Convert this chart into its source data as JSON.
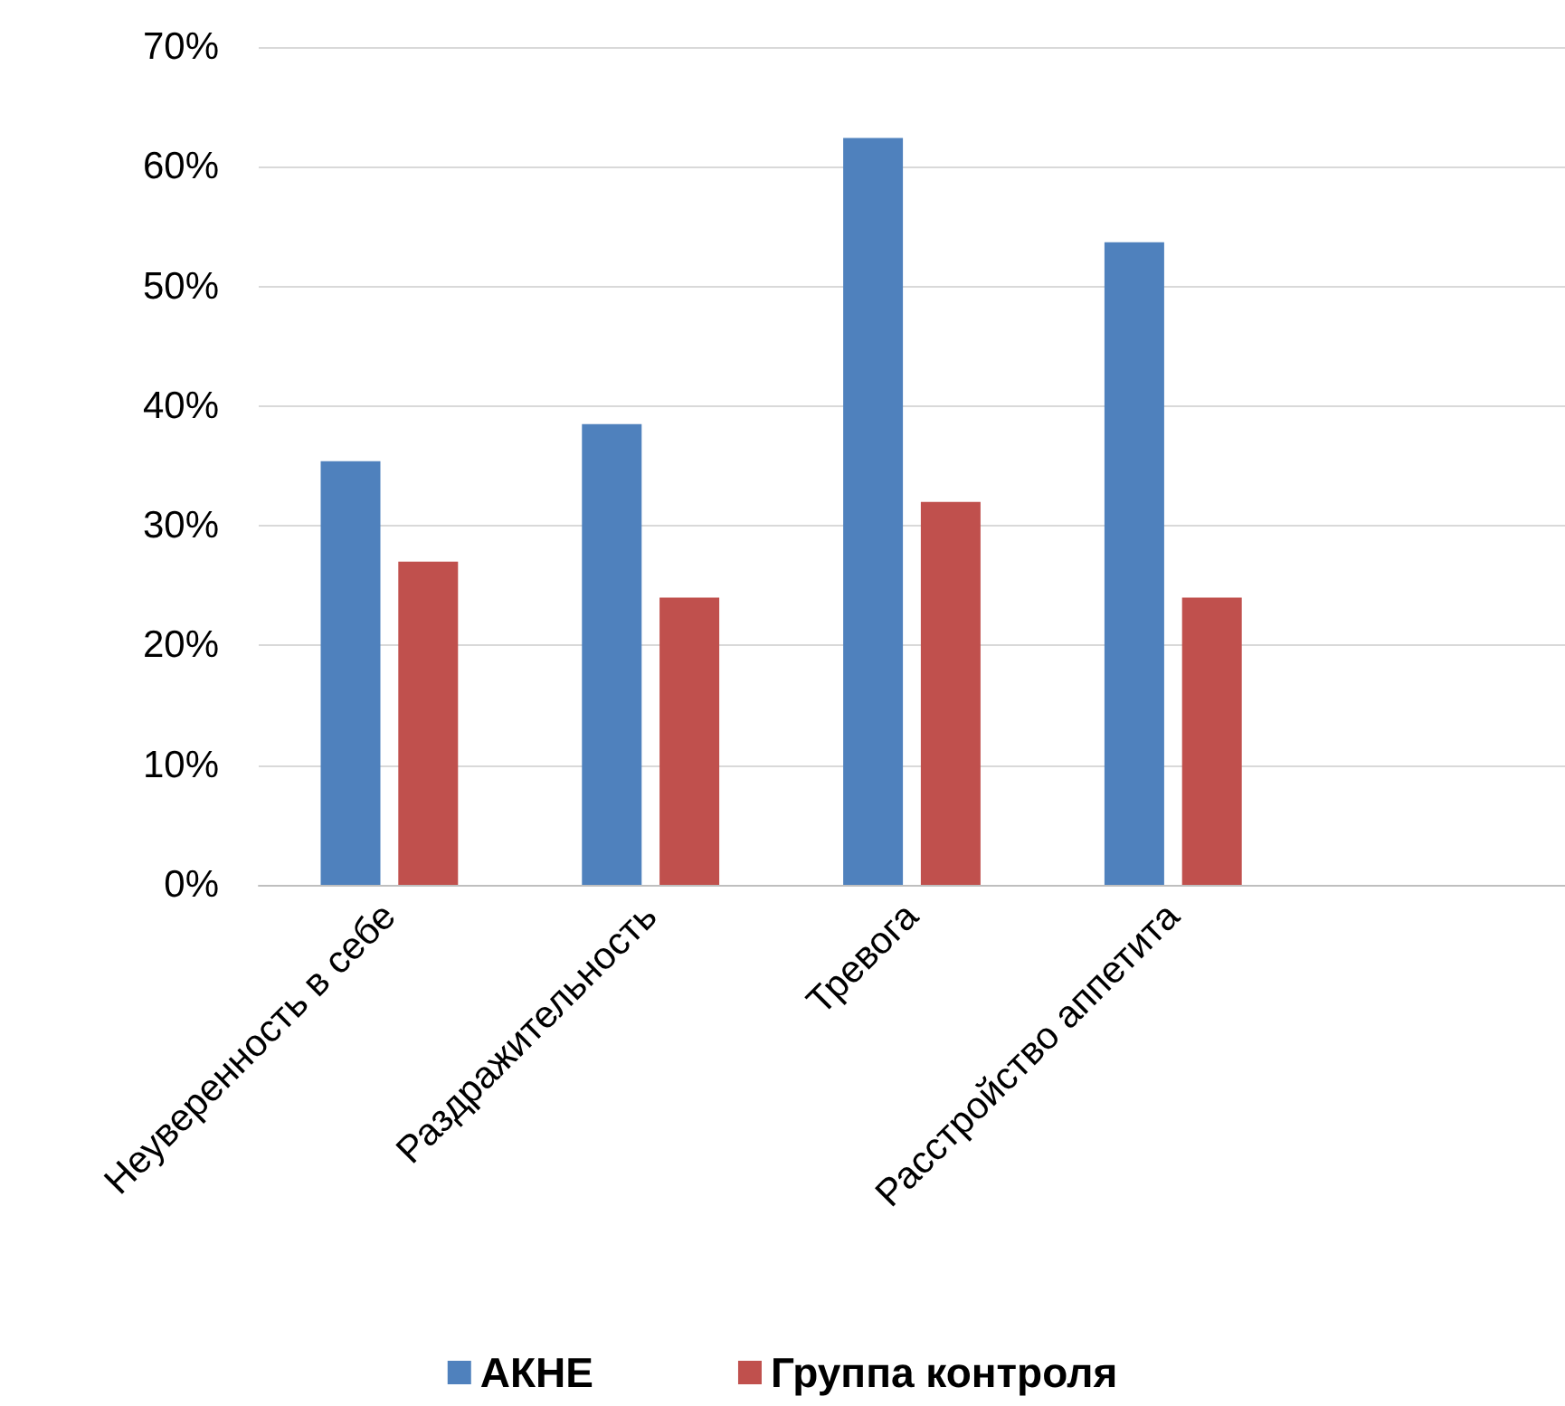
{
  "chart_data": {
    "type": "bar",
    "categories": [
      "Неуверенность в себе",
      "Раздражительность",
      "Тревога",
      "Расстройство аппетита",
      null
    ],
    "series": [
      {
        "name": "АКНЕ",
        "color": "#4f81bd",
        "values": [
          35.4,
          38.5,
          62.4,
          53.7,
          null
        ]
      },
      {
        "name": "Группа контроля",
        "color": "#c0504d",
        "values": [
          27,
          24,
          32,
          24,
          null
        ]
      }
    ],
    "ylim": [
      0,
      70
    ],
    "yticks": [
      {
        "value": 0,
        "label": "0%"
      },
      {
        "value": 10,
        "label": "10%"
      },
      {
        "value": 20,
        "label": "20%"
      },
      {
        "value": 30,
        "label": "30%"
      },
      {
        "value": 40,
        "label": "40%"
      },
      {
        "value": 50,
        "label": "50%"
      },
      {
        "value": 60,
        "label": "60%"
      },
      {
        "value": 70,
        "label": "70%"
      }
    ],
    "grid": "y",
    "legend": "bottom"
  }
}
